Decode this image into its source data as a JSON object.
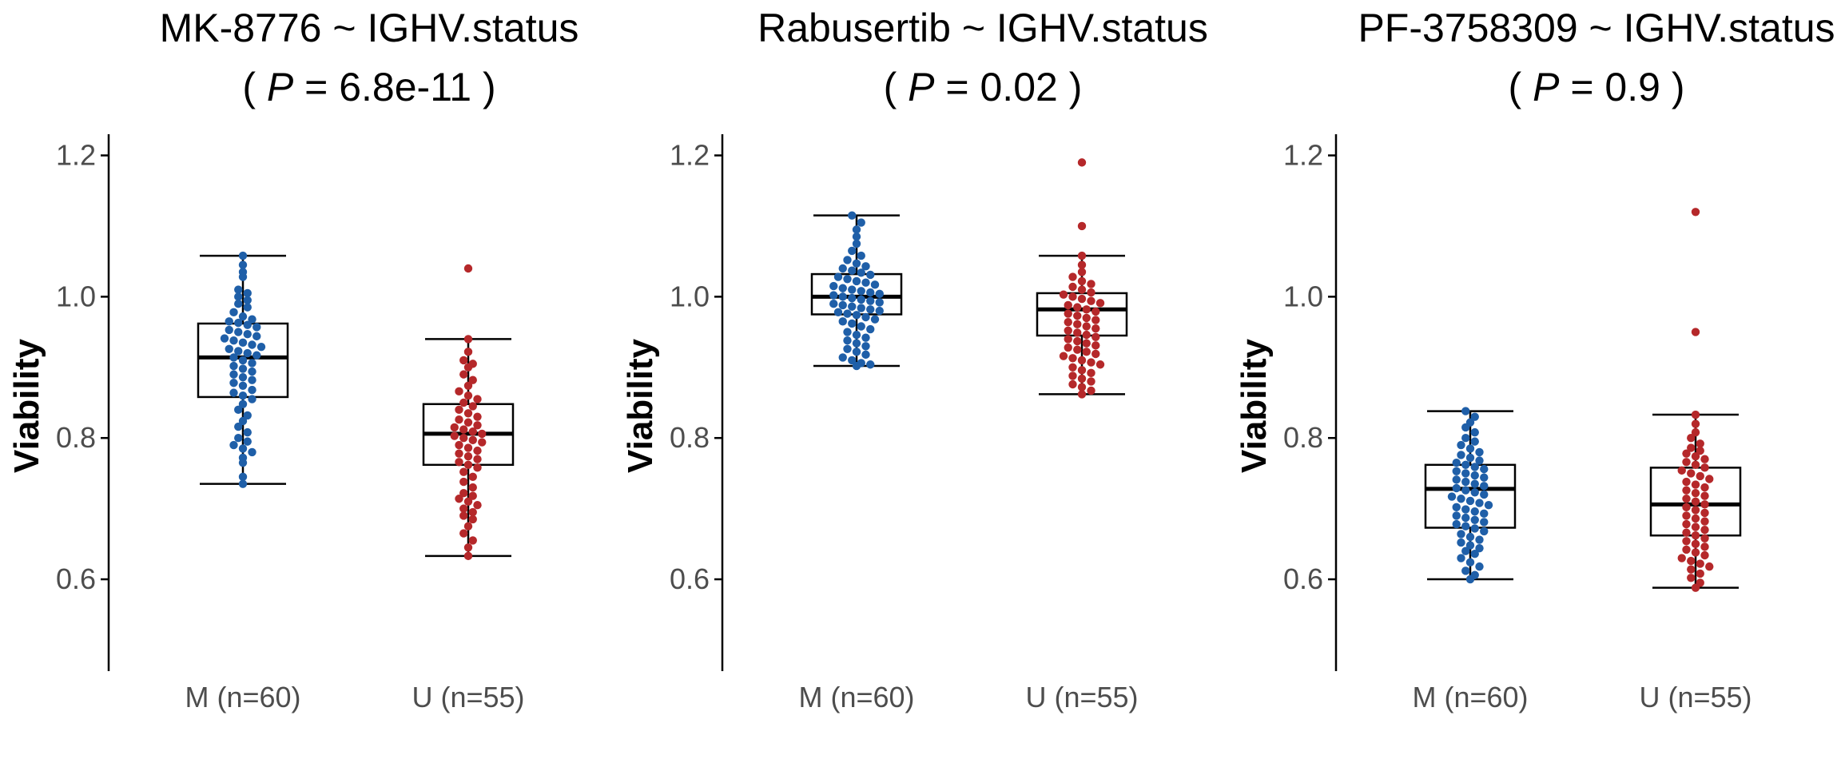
{
  "chart_data": [
    {
      "type": "box",
      "title": "MK-8776 ~ IGHV.status",
      "p_label": "P",
      "p_value": "6.8e-11",
      "ylabel": "Viability",
      "ylim": [
        0.47,
        1.23
      ],
      "yticks": [
        0.6,
        0.8,
        1.0,
        1.2
      ],
      "categories": [
        "M (n=60)",
        "U (n=55)"
      ],
      "colors": [
        "#1f5fa8",
        "#b5282a"
      ],
      "boxes": [
        {
          "lower_whisker": 0.735,
          "q1": 0.858,
          "median": 0.914,
          "q3": 0.962,
          "upper_whisker": 1.058,
          "points": [
            1.058,
            1.045,
            1.035,
            1.028,
            1.01,
            1.005,
            1.0,
            0.995,
            0.99,
            0.985,
            0.978,
            0.972,
            0.968,
            0.965,
            0.963,
            0.96,
            0.957,
            0.953,
            0.95,
            0.947,
            0.944,
            0.941,
            0.938,
            0.935,
            0.932,
            0.929,
            0.926,
            0.923,
            0.92,
            0.917,
            0.914,
            0.91,
            0.906,
            0.902,
            0.898,
            0.894,
            0.89,
            0.886,
            0.882,
            0.878,
            0.874,
            0.868,
            0.864,
            0.86,
            0.855,
            0.848,
            0.84,
            0.832,
            0.824,
            0.816,
            0.808,
            0.8,
            0.795,
            0.79,
            0.785,
            0.78,
            0.772,
            0.765,
            0.745,
            0.735
          ]
        },
        {
          "lower_whisker": 0.633,
          "q1": 0.762,
          "median": 0.806,
          "q3": 0.848,
          "upper_whisker": 0.94,
          "points": [
            1.04,
            0.94,
            0.922,
            0.91,
            0.905,
            0.9,
            0.89,
            0.882,
            0.874,
            0.866,
            0.86,
            0.855,
            0.85,
            0.845,
            0.84,
            0.835,
            0.83,
            0.826,
            0.822,
            0.818,
            0.815,
            0.812,
            0.809,
            0.806,
            0.803,
            0.8,
            0.797,
            0.794,
            0.79,
            0.786,
            0.782,
            0.778,
            0.774,
            0.77,
            0.766,
            0.762,
            0.758,
            0.752,
            0.745,
            0.738,
            0.73,
            0.722,
            0.718,
            0.714,
            0.71,
            0.705,
            0.7,
            0.695,
            0.69,
            0.685,
            0.675,
            0.665,
            0.655,
            0.645,
            0.633
          ]
        }
      ]
    },
    {
      "type": "box",
      "title": "Rabusertib ~ IGHV.status",
      "p_label": "P",
      "p_value": "0.02",
      "ylabel": "Viability",
      "ylim": [
        0.47,
        1.23
      ],
      "yticks": [
        0.6,
        0.8,
        1.0,
        1.2
      ],
      "categories": [
        "M (n=60)",
        "U (n=55)"
      ],
      "colors": [
        "#1f5fa8",
        "#b5282a"
      ],
      "boxes": [
        {
          "lower_whisker": 0.902,
          "q1": 0.975,
          "median": 1.0,
          "q3": 1.032,
          "upper_whisker": 1.115,
          "points": [
            1.115,
            1.105,
            1.095,
            1.085,
            1.075,
            1.065,
            1.058,
            1.052,
            1.047,
            1.043,
            1.04,
            1.037,
            1.034,
            1.031,
            1.028,
            1.025,
            1.022,
            1.02,
            1.017,
            1.015,
            1.012,
            1.01,
            1.008,
            1.006,
            1.004,
            1.002,
            1.0,
            0.998,
            0.996,
            0.994,
            0.992,
            0.99,
            0.988,
            0.986,
            0.984,
            0.982,
            0.98,
            0.978,
            0.976,
            0.974,
            0.971,
            0.968,
            0.965,
            0.962,
            0.958,
            0.954,
            0.95,
            0.946,
            0.942,
            0.938,
            0.934,
            0.93,
            0.926,
            0.922,
            0.918,
            0.914,
            0.91,
            0.906,
            0.904,
            0.902
          ]
        },
        {
          "lower_whisker": 0.862,
          "q1": 0.945,
          "median": 0.982,
          "q3": 1.005,
          "upper_whisker": 1.058,
          "points": [
            1.19,
            1.1,
            1.058,
            1.045,
            1.035,
            1.028,
            1.022,
            1.018,
            1.014,
            1.01,
            1.006,
            1.003,
            1.0,
            0.997,
            0.994,
            0.991,
            0.988,
            0.985,
            0.982,
            0.979,
            0.976,
            0.973,
            0.97,
            0.967,
            0.964,
            0.961,
            0.958,
            0.955,
            0.952,
            0.949,
            0.946,
            0.943,
            0.94,
            0.937,
            0.934,
            0.931,
            0.928,
            0.925,
            0.922,
            0.919,
            0.916,
            0.913,
            0.91,
            0.907,
            0.904,
            0.9,
            0.896,
            0.892,
            0.888,
            0.884,
            0.88,
            0.876,
            0.872,
            0.867,
            0.862
          ]
        }
      ]
    },
    {
      "type": "box",
      "title": "PF-3758309 ~ IGHV.status",
      "p_label": "P",
      "p_value": "0.9",
      "ylabel": "Viability",
      "ylim": [
        0.47,
        1.23
      ],
      "yticks": [
        0.6,
        0.8,
        1.0,
        1.2
      ],
      "categories": [
        "M (n=60)",
        "U (n=55)"
      ],
      "colors": [
        "#1f5fa8",
        "#b5282a"
      ],
      "boxes": [
        {
          "lower_whisker": 0.6,
          "q1": 0.673,
          "median": 0.728,
          "q3": 0.762,
          "upper_whisker": 0.838,
          "points": [
            0.838,
            0.83,
            0.822,
            0.815,
            0.808,
            0.8,
            0.795,
            0.79,
            0.785,
            0.78,
            0.776,
            0.772,
            0.768,
            0.765,
            0.762,
            0.759,
            0.756,
            0.753,
            0.75,
            0.747,
            0.744,
            0.741,
            0.738,
            0.735,
            0.732,
            0.729,
            0.726,
            0.723,
            0.72,
            0.717,
            0.714,
            0.711,
            0.708,
            0.705,
            0.702,
            0.699,
            0.696,
            0.693,
            0.69,
            0.687,
            0.684,
            0.681,
            0.678,
            0.675,
            0.672,
            0.668,
            0.664,
            0.66,
            0.656,
            0.652,
            0.648,
            0.644,
            0.64,
            0.636,
            0.63,
            0.624,
            0.618,
            0.612,
            0.606,
            0.6
          ]
        },
        {
          "lower_whisker": 0.588,
          "q1": 0.662,
          "median": 0.706,
          "q3": 0.758,
          "upper_whisker": 0.833,
          "points": [
            1.12,
            0.95,
            0.833,
            0.82,
            0.808,
            0.8,
            0.792,
            0.786,
            0.782,
            0.778,
            0.774,
            0.77,
            0.766,
            0.762,
            0.758,
            0.754,
            0.75,
            0.746,
            0.742,
            0.738,
            0.734,
            0.73,
            0.726,
            0.722,
            0.718,
            0.714,
            0.71,
            0.706,
            0.702,
            0.698,
            0.694,
            0.69,
            0.686,
            0.682,
            0.678,
            0.674,
            0.67,
            0.666,
            0.662,
            0.658,
            0.654,
            0.65,
            0.646,
            0.642,
            0.638,
            0.634,
            0.63,
            0.626,
            0.622,
            0.618,
            0.614,
            0.608,
            0.602,
            0.595,
            0.588
          ]
        }
      ]
    }
  ]
}
